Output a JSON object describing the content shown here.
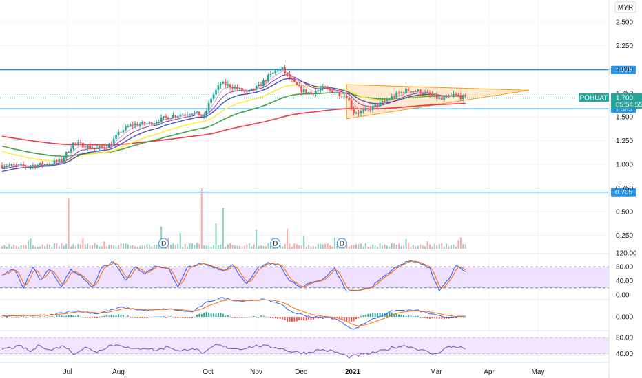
{
  "currency": "MYR",
  "symbol": "POHUAT",
  "last_price": "1.700",
  "countdown": "05:54:55",
  "colors": {
    "up": "#26a69a",
    "down": "#ef5350",
    "hline": "#2196f3",
    "tag": "#2196f3",
    "price_tag": "#26a69a",
    "ema_red": "#f23645",
    "ema_green": "#43a047",
    "ema_yellow": "#ffeb3b",
    "ema_blue": "#3f51b5",
    "ema_purple": "#9c27b0",
    "ema_pink": "#e1a0c8",
    "triangle_fill": "#ffd7a8",
    "triangle_line": "#ff9800",
    "stoch_bg": "#e6ccff",
    "stoch_k": "#2962ff",
    "stoch_d": "#ff6d00",
    "rsi_line": "#7e57c2",
    "rsi_bg": "#f3e5ff"
  },
  "chart_data": [
    {
      "type": "candlestick",
      "price_axis_ticks": [
        "2.500",
        "2.250",
        "2.000",
        "1.750",
        "1.500",
        "1.250",
        "1.000",
        "0.750",
        "0.500",
        "0.250"
      ],
      "time_axis_labels": [
        "Jul",
        "Aug",
        "Oct",
        "Nov",
        "Dec",
        "2021",
        "Mar",
        "Apr",
        "May"
      ],
      "horizontal_levels": [
        {
          "label": "1.995",
          "value": 1.995
        },
        {
          "label": "1.585",
          "value": 1.585
        },
        {
          "label": "0.705",
          "value": 0.705
        }
      ],
      "price_keypoints": [
        [
          0,
          0.99
        ],
        [
          10,
          0.98
        ],
        [
          18,
          1.0
        ],
        [
          25,
          1.04
        ],
        [
          30,
          1.22
        ],
        [
          34,
          1.2
        ],
        [
          40,
          1.16
        ],
        [
          45,
          1.2
        ],
        [
          50,
          1.35
        ],
        [
          55,
          1.42
        ],
        [
          62,
          1.43
        ],
        [
          70,
          1.5
        ],
        [
          80,
          1.55
        ],
        [
          85,
          1.5
        ],
        [
          88,
          1.7
        ],
        [
          92,
          1.85
        ],
        [
          97,
          1.82
        ],
        [
          103,
          1.75
        ],
        [
          108,
          1.82
        ],
        [
          112,
          1.92
        ],
        [
          116,
          2.0
        ],
        [
          118,
          2.0
        ],
        [
          122,
          1.87
        ],
        [
          126,
          1.78
        ],
        [
          130,
          1.75
        ],
        [
          135,
          1.8
        ],
        [
          140,
          1.76
        ],
        [
          145,
          1.72
        ],
        [
          148,
          1.55
        ],
        [
          152,
          1.55
        ],
        [
          156,
          1.6
        ],
        [
          160,
          1.65
        ],
        [
          165,
          1.72
        ],
        [
          170,
          1.78
        ],
        [
          175,
          1.77
        ],
        [
          180,
          1.73
        ],
        [
          185,
          1.68
        ],
        [
          190,
          1.73
        ],
        [
          195,
          1.7
        ]
      ],
      "indicators": [
        "EMA red",
        "EMA green",
        "EMA yellow",
        "EMA blue",
        "EMA purple",
        "EMA pink"
      ]
    },
    {
      "type": "bar",
      "name": "volume",
      "spikes": [
        [
          28,
          0.8
        ],
        [
          67,
          0.35
        ],
        [
          75,
          0.25
        ],
        [
          84,
          0.95
        ],
        [
          90,
          0.4
        ],
        [
          93,
          0.65
        ],
        [
          107,
          0.3
        ],
        [
          120,
          0.32
        ],
        [
          127,
          0.2
        ],
        [
          140,
          0.18
        ]
      ]
    },
    {
      "type": "line",
      "name": "stochastic",
      "ticks": [
        "120.00",
        "80.00",
        "40.00",
        "0.00"
      ],
      "levels": [
        80,
        20
      ],
      "k_keypoints": [
        [
          0,
          55
        ],
        [
          5,
          75
        ],
        [
          9,
          20
        ],
        [
          13,
          80
        ],
        [
          16,
          40
        ],
        [
          20,
          75
        ],
        [
          25,
          25
        ],
        [
          29,
          72
        ],
        [
          34,
          50
        ],
        [
          38,
          20
        ],
        [
          42,
          78
        ],
        [
          47,
          95
        ],
        [
          52,
          40
        ],
        [
          56,
          82
        ],
        [
          60,
          60
        ],
        [
          64,
          80
        ],
        [
          70,
          75
        ],
        [
          74,
          20
        ],
        [
          78,
          78
        ],
        [
          84,
          90
        ],
        [
          88,
          82
        ],
        [
          93,
          70
        ],
        [
          97,
          85
        ],
        [
          103,
          30
        ],
        [
          108,
          78
        ],
        [
          112,
          90
        ],
        [
          117,
          85
        ],
        [
          121,
          40
        ],
        [
          126,
          20
        ],
        [
          130,
          35
        ],
        [
          135,
          45
        ],
        [
          140,
          75
        ],
        [
          145,
          10
        ],
        [
          150,
          15
        ],
        [
          155,
          20
        ],
        [
          160,
          50
        ],
        [
          165,
          75
        ],
        [
          170,
          95
        ],
        [
          175,
          95
        ],
        [
          180,
          75
        ],
        [
          184,
          10
        ],
        [
          188,
          45
        ],
        [
          191,
          85
        ],
        [
          195,
          65
        ]
      ]
    },
    {
      "type": "line",
      "name": "macd",
      "ticks": [
        "0.000"
      ],
      "macd_keypoints": [
        [
          0,
          0.005
        ],
        [
          20,
          0.01
        ],
        [
          30,
          0.04
        ],
        [
          40,
          0.02
        ],
        [
          50,
          0.06
        ],
        [
          60,
          0.04
        ],
        [
          70,
          0.05
        ],
        [
          80,
          0.03
        ],
        [
          86,
          0.09
        ],
        [
          92,
          0.12
        ],
        [
          100,
          0.1
        ],
        [
          110,
          0.11
        ],
        [
          116,
          0.09
        ],
        [
          122,
          0.03
        ],
        [
          130,
          0.0
        ],
        [
          140,
          -0.01
        ],
        [
          148,
          -0.08
        ],
        [
          155,
          -0.02
        ],
        [
          165,
          0.04
        ],
        [
          175,
          0.04
        ],
        [
          185,
          0.0
        ],
        [
          195,
          0.0
        ]
      ]
    },
    {
      "type": "line",
      "name": "rsi",
      "ticks": [
        "80.00",
        "40.00"
      ],
      "rsi_keypoints": [
        [
          0,
          52
        ],
        [
          8,
          58
        ],
        [
          12,
          45
        ],
        [
          16,
          62
        ],
        [
          20,
          48
        ],
        [
          26,
          60
        ],
        [
          30,
          40
        ],
        [
          35,
          55
        ],
        [
          40,
          45
        ],
        [
          45,
          60
        ],
        [
          50,
          62
        ],
        [
          55,
          50
        ],
        [
          60,
          55
        ],
        [
          65,
          48
        ],
        [
          70,
          58
        ],
        [
          75,
          45
        ],
        [
          80,
          55
        ],
        [
          85,
          40
        ],
        [
          90,
          62
        ],
        [
          95,
          55
        ],
        [
          100,
          52
        ],
        [
          108,
          60
        ],
        [
          116,
          55
        ],
        [
          122,
          45
        ],
        [
          128,
          42
        ],
        [
          134,
          50
        ],
        [
          140,
          45
        ],
        [
          146,
          32
        ],
        [
          152,
          38
        ],
        [
          158,
          44
        ],
        [
          165,
          56
        ],
        [
          170,
          60
        ],
        [
          176,
          50
        ],
        [
          182,
          38
        ],
        [
          187,
          55
        ],
        [
          191,
          58
        ],
        [
          195,
          52
        ]
      ]
    }
  ]
}
